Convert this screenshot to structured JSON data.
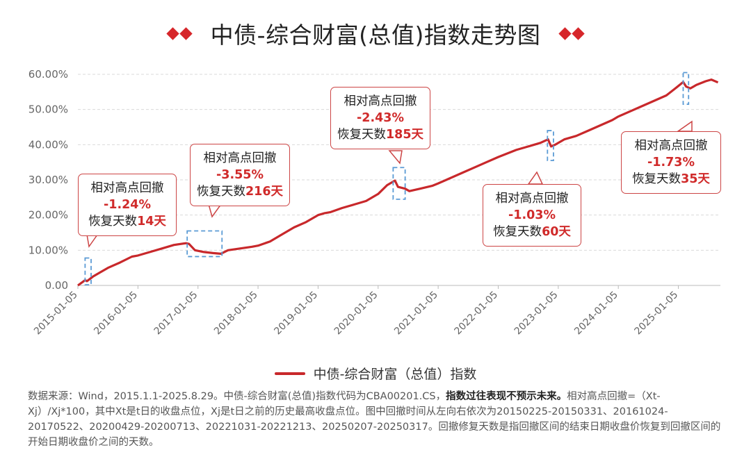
{
  "title": "中债-综合财富(总值)指数走势图",
  "legend_label": "中债-综合财富（总值）指数",
  "note": {
    "part1": "数据来源：Wind，2015.1.1-2025.8.29。中债-综合财富(总值)指数代码为CBA00201.CS，",
    "bold": "指数过往表现不预示未来。",
    "part2": "相对高点回撤=（Xt-Xj）/Xj*100，其中Xt是t日的收盘点位，Xj是t日之前的历史最高收盘点位。图中回撤时间从左向右依次为20150225-20150331、20161024-20170522、20200429-20200713、20221031-20221213、20250207-20250317。回撤修复天数是指回撤区间的结束日期收盘价恢复到回撤区间的开始日期收盘价之间的天数。"
  },
  "callouts": [
    {
      "title": "相对高点回撤",
      "pct": "-1.24%",
      "days_prefix": "恢复天数",
      "days": "14天"
    },
    {
      "title": "相对高点回撤",
      "pct": "-3.55%",
      "days_prefix": "恢复天数",
      "days": "216天"
    },
    {
      "title": "相对高点回撤",
      "pct": "-2.43%",
      "days_prefix": "恢复天数",
      "days": "185天"
    },
    {
      "title": "相对高点回撤",
      "pct": "-1.03%",
      "days_prefix": "恢复天数",
      "days": "60天"
    },
    {
      "title": "相对高点回撤",
      "pct": "-1.73%",
      "days_prefix": "恢复天数",
      "days": "35天"
    }
  ],
  "colors": {
    "line": "#c8282b",
    "accent": "#d6262a",
    "box": "#5b9bd5",
    "grid": "#d9d9d9"
  },
  "chart_data": {
    "type": "line",
    "ylim": [
      0,
      60
    ],
    "yticks": [
      "0.00",
      "10.00%",
      "20.00%",
      "30.00%",
      "40.00%",
      "50.00%",
      "60.00%"
    ],
    "xticks": [
      "2015-01-05",
      "2016-01-05",
      "2017-01-05",
      "2018-01-05",
      "2019-01-05",
      "2020-01-05",
      "2021-01-05",
      "2022-01-05",
      "2023-01-05",
      "2024-01-05",
      "2025-01-05"
    ],
    "series": [
      {
        "name": "中债-综合财富（总值）指数",
        "x": [
          2015.0,
          2015.12,
          2015.15,
          2015.25,
          2015.35,
          2015.5,
          2015.7,
          2015.9,
          2016.0,
          2016.2,
          2016.4,
          2016.6,
          2016.8,
          2016.85,
          2016.95,
          2017.1,
          2017.25,
          2017.38,
          2017.5,
          2017.7,
          2017.9,
          2018.0,
          2018.2,
          2018.4,
          2018.6,
          2018.8,
          2019.0,
          2019.1,
          2019.2,
          2019.4,
          2019.6,
          2019.8,
          2020.0,
          2020.15,
          2020.28,
          2020.33,
          2020.45,
          2020.52,
          2020.7,
          2020.9,
          2021.0,
          2021.2,
          2021.4,
          2021.6,
          2021.8,
          2022.0,
          2022.3,
          2022.5,
          2022.7,
          2022.83,
          2022.88,
          2022.95,
          2023.1,
          2023.3,
          2023.5,
          2023.7,
          2023.9,
          2024.0,
          2024.2,
          2024.4,
          2024.6,
          2024.8,
          2024.95,
          2025.08,
          2025.13,
          2025.2,
          2025.3,
          2025.45,
          2025.55,
          2025.66
        ],
        "values": [
          0,
          1.5,
          1.2,
          2.5,
          3.5,
          5,
          6.5,
          8.2,
          8.5,
          9.5,
          10.5,
          11.5,
          12,
          11.8,
          10,
          9.5,
          9.2,
          9.0,
          10,
          10.5,
          11,
          11.3,
          12.5,
          14.5,
          16.5,
          18,
          20,
          20.5,
          20.8,
          22,
          23,
          24,
          26,
          28.5,
          29.8,
          28,
          27.5,
          26.8,
          27.5,
          28.3,
          29,
          30.5,
          32,
          33.5,
          35,
          36.5,
          38.5,
          39.5,
          40.5,
          41.5,
          39.5,
          40,
          41.5,
          42.5,
          44,
          45.5,
          47,
          48,
          49.5,
          51,
          52.5,
          54,
          56,
          57.8,
          56.5,
          56,
          57,
          58,
          58.5,
          57.7
        ]
      }
    ]
  }
}
